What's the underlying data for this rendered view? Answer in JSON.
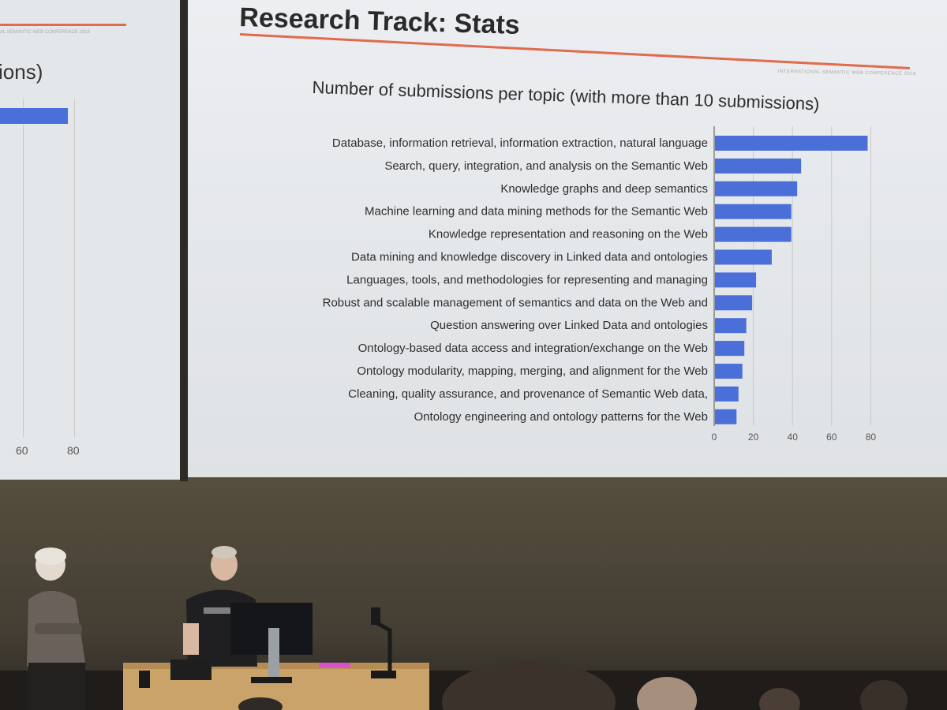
{
  "slide": {
    "title": "Research Track: Stats",
    "conference_tag": "INTERNATIONAL SEMANTIC WEB CONFERENCE 2018"
  },
  "left_slide": {
    "title_fragment": "ions)",
    "x_ticks": [
      "60",
      "80"
    ],
    "conference_tag": "AL SEMANTIC WEB CONFERENCE 2018"
  },
  "chart_data": {
    "type": "bar",
    "orientation": "horizontal",
    "title": "Number of submissions per topic (with more than 10 submissions)",
    "xlabel": "",
    "ylabel": "",
    "xlim": [
      0,
      80
    ],
    "x_ticks": [
      0,
      20,
      40,
      60,
      80
    ],
    "grid": true,
    "bar_color": "#4a6fd8",
    "categories": [
      "Database, information retrieval, information extraction, natural language",
      "Search, query, integration, and analysis on the Semantic Web",
      "Knowledge graphs and deep semantics",
      "Machine learning and data mining methods for the Semantic Web",
      "Knowledge representation and reasoning on the Web",
      "Data mining and knowledge discovery in Linked data and ontologies",
      "Languages, tools, and methodologies for representing and managing",
      "Robust and scalable management of semantics and data on the Web and",
      "Question answering over Linked Data and ontologies",
      "Ontology-based data access and integration/exchange on the Web",
      "Ontology modularity, mapping, merging, and alignment for the Web",
      "Cleaning, quality assurance, and provenance of Semantic Web data,",
      "Ontology engineering and ontology patterns for the Web"
    ],
    "values": [
      78,
      44,
      42,
      39,
      39,
      29,
      21,
      19,
      16,
      15,
      14,
      12,
      11
    ]
  }
}
